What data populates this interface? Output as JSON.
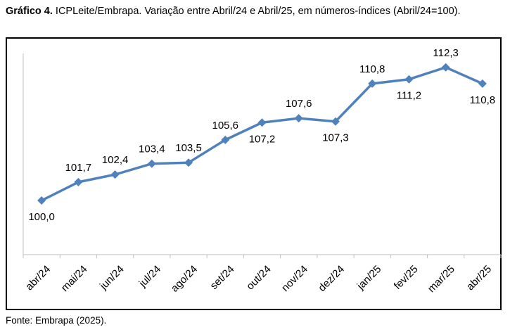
{
  "caption": {
    "label": "Gráfico 4.",
    "text": "ICPLeite/Embrapa. Variação entre Abril/24 e Abril/25, em números-índices (Abril/24=100)."
  },
  "source": "Fonte: Embrapa (2025).",
  "colors": {
    "line": "#4F81BD",
    "axis": "#BFBFBF"
  },
  "chart_data": {
    "type": "line",
    "categories": [
      "abr/24",
      "mai/24",
      "jun/24",
      "jul/24",
      "ago/24",
      "set/24",
      "out/24",
      "nov/24",
      "dez/24",
      "jan/25",
      "fev/25",
      "mar/25",
      "abr/25"
    ],
    "series": [
      {
        "values": [
          100.0,
          101.7,
          102.4,
          103.4,
          103.5,
          105.6,
          107.2,
          107.6,
          107.3,
          110.8,
          111.2,
          112.3,
          110.8
        ]
      }
    ],
    "data_labels": [
      "100,0",
      "101,7",
      "102,4",
      "103,4",
      "103,5",
      "105,6",
      "107,2",
      "107,6",
      "107,3",
      "110,8",
      "111,2",
      "112,3",
      "110,8"
    ],
    "label_positions": [
      "below",
      "above",
      "above",
      "above",
      "above",
      "above",
      "below",
      "above",
      "below",
      "above",
      "below",
      "above",
      "below"
    ],
    "ylim": [
      95,
      113
    ],
    "grid": false,
    "legend": "none"
  }
}
